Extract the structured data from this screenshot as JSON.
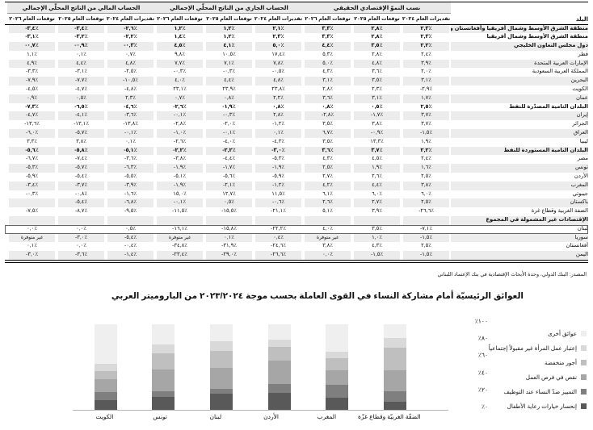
{
  "table": {
    "country_header": "البلد",
    "blocks": [
      {
        "title": "نسب النموّ الإقتصادي الحقيقي"
      },
      {
        "title": "الحساب الجاري من الناتج المحلّي الإجمالي"
      },
      {
        "title": "الحساب المالي من الناتج المحلّي الإجمالي"
      }
    ],
    "col_headers": [
      "تقديرات العام ٢٠٢٤",
      "توقعات العام ٢٠٢٥",
      "توقعات العام ٢٠٢٦"
    ],
    "na_text": "غير متوفرة",
    "source": "المصدر: البنك الدولي، وحدة الأبحاث الإقتصادية في بنك الإعتماد اللبناني",
    "rows": [
      {
        "name": "منطقة الشرق الأوسط وشمال أفريقيا وأفغانستان وباكستان",
        "bold": true,
        "growth": [
          "٢,٣٪",
          "٢,٨٪",
          "٣,٣٪"
        ],
        "current": [
          "٢,١٪",
          "١,٢٪",
          "١,٢٪"
        ],
        "fiscal": [
          "-٢,٦٪",
          "-٣,٤٪",
          "-٣,٤٪"
        ]
      },
      {
        "name": "منطقة الشرق الأوسط وشمال أفريقيا",
        "bold": true,
        "growth": [
          "٢,٣٪",
          "٢,٨٪",
          "٣,٣٪"
        ],
        "current": [
          "٢,٣٪",
          "١,٢٪",
          "١,٤٪"
        ],
        "fiscal": [
          "-٢,٢٪",
          "-٣,٢٪",
          "-٣,١٪"
        ]
      },
      {
        "name": "دول مجلس التعاون الخليجي",
        "bold": true,
        "growth": [
          "٢,٢٪",
          "٣,٥٪",
          "٤,٤٪"
        ],
        "current": [
          "٥,٠٪",
          "٤,١٪",
          "٤,٥٪"
        ],
        "fiscal": [
          "-٠,٣٪",
          "-٠,٩٪",
          "-٠,٧٪"
        ]
      },
      {
        "name": "قطر",
        "bold": false,
        "growth": [
          "٢,٤٪",
          "٢,٨٪",
          "٥,٣٪"
        ],
        "current": [
          "١٧,٤٪",
          "١٠,٥٪",
          "٩,٨٪"
        ],
        "fiscal": [
          "٠,٧٪",
          "٠,١٪",
          "١,١٪"
        ]
      },
      {
        "name": "الإمارات العربية المتحدة",
        "bold": false,
        "growth": [
          "٣,٩٪",
          "٤,٨٪",
          "٥,٠٪"
        ],
        "current": [
          "٧,٨٪",
          "٧,١٪",
          "٧,٧٪"
        ],
        "fiscal": [
          "٤,٨٪",
          "٤,٤٪",
          "٤,٩٪"
        ]
      },
      {
        "name": "المملكة العربية السعودية",
        "bold": false,
        "growth": [
          "٢,٠٪",
          "٣,٦٪",
          "٤,٣٪"
        ],
        "current": [
          "-٠,٥٪",
          "-٠,٣٪",
          "-٠,٣٪"
        ],
        "fiscal": [
          "-٢,٥٪",
          "-٣,١٪",
          "-٣,٣٪"
        ]
      },
      {
        "name": "البحرين",
        "bold": false,
        "growth": [
          "٣,١٪",
          "٣,٥٪",
          "٣,١٪"
        ],
        "current": [
          "٤,٨٪",
          "٤,٤٪",
          "٤,٠٪"
        ],
        "fiscal": [
          "-١٠,٥٪",
          "-٧,٧٪",
          "-٧,٩٪"
        ]
      },
      {
        "name": "الكويت",
        "bold": false,
        "growth": [
          "-٢,٩٪",
          "٢,٣٪",
          "٢,٨٪"
        ],
        "current": [
          "٢٣,٨٪",
          "٢٣,٩٪",
          "٢٣,١٪"
        ],
        "fiscal": [
          "-٤,٨٪",
          "-٤,٧٪",
          "-٤,٥٪"
        ]
      },
      {
        "name": "عمان",
        "bold": false,
        "growth": [
          "١,٧٪",
          "٣,١٪",
          "٣,٦٪"
        ],
        "current": [
          "٢,٢٪",
          "٠,٨٪",
          "٠,٧٪"
        ],
        "fiscal": [
          "٢,٣٪",
          "٠,٥٪",
          "٠,٩٪"
        ]
      },
      {
        "name": "البلدان النامية المصدّرة للنفط",
        "bold": true,
        "growth": [
          "٢,٥٪",
          "٠,٥٪",
          "٠,٨٪"
        ],
        "current": [
          "٠,٨٪",
          "-١,٩٪",
          "-٢,٦٪"
        ],
        "fiscal": [
          "-٤,٦٪",
          "-٦,٥٪",
          "-٧,٣٪"
        ]
      },
      {
        "name": "إيران",
        "bold": false,
        "growth": [
          "٣,٧٪",
          "-١,٧٪",
          "-٢,٨٪"
        ],
        "current": [
          "٢,٨٪",
          "-٠,٣٪",
          "-٠,١٪"
        ],
        "fiscal": [
          "-٣,٦٪",
          "-٤,١٪",
          "-٤,٧٪"
        ]
      },
      {
        "name": "الجزائر",
        "bold": false,
        "growth": [
          "٣,٧٪",
          "٣,٨٪",
          "٣,٥٪"
        ],
        "current": [
          "-١,٢٪",
          "-٢,٠٪",
          "-٢,٨٪"
        ],
        "fiscal": [
          "-١٣,٨٪",
          "-١٣,١٪",
          "-١٣,٦٪"
        ]
      },
      {
        "name": "العراق",
        "bold": false,
        "growth": [
          "-١,٥٪",
          "-٠,٩٪",
          "٦,٧٪"
        ],
        "current": [
          "٠,١٪",
          "-٠,١٪",
          "-١,٠٪"
        ],
        "fiscal": [
          "-٠,١٪",
          "-٥,٧٪",
          "-٦,٠٪"
        ]
      },
      {
        "name": "ليبيا",
        "bold": false,
        "growth": [
          "١,٩٪",
          "١٣,٣٪",
          "٣,٥٪"
        ],
        "current": [
          "-٤,٣٪",
          "-٤,٠٪",
          "-٢,٦٪"
        ],
        "fiscal": [
          "٠,١٪",
          "٣,٨٪",
          "٣,٣٪"
        ]
      },
      {
        "name": "البلدان النامية المستوردة للنفط",
        "bold": true,
        "growth": [
          "٢,٢٪",
          "٣,٧٪",
          "٣,٦٪"
        ],
        "current": [
          "-٣,٠٪",
          "-٢,٢٪",
          "-٢,٢٪"
        ],
        "fiscal": [
          "-٥,١٪",
          "-٥,٨٪",
          "-٥,٦٪"
        ]
      },
      {
        "name": "مصر",
        "bold": false,
        "growth": [
          "٢,٤٪",
          "٤,٥٪",
          "٤,٣٪"
        ],
        "current": [
          "-٥,٣٪",
          "-٤,٤٪",
          "-٣,٨٪"
        ],
        "fiscal": [
          "-٣,٦٪",
          "-٧,٤٪",
          "-٦,٧٪"
        ]
      },
      {
        "name": "تونس",
        "bold": false,
        "growth": [
          "١,٦٪",
          "١,٩٪",
          "٢,٥٪"
        ],
        "current": [
          "-١,٩٪",
          "-١,٧٪",
          "-١,٩٪"
        ],
        "fiscal": [
          "-٦,٣٪",
          "-٥,٧٪",
          "-٥,٣٪"
        ]
      },
      {
        "name": "الأردن",
        "bold": false,
        "growth": [
          "٢,٥٪",
          "٢,٦٪",
          "٢,٧٪"
        ],
        "current": [
          "-٥,٩٪",
          "-٥,٦٪",
          "-٥,١٪"
        ],
        "fiscal": [
          "-٥,٥٪",
          "-٥,٤٪",
          "-٥,٩٪"
        ]
      },
      {
        "name": "المغرب",
        "bold": false,
        "growth": [
          "٣,٨٪",
          "٤,٤٪",
          "٤,٢٪"
        ],
        "current": [
          "-١,٢٪",
          "-٢,١٪",
          "-١,٩٪"
        ],
        "fiscal": [
          "-٣,٩٪",
          "-٣,٧٪",
          "-٣,٤٪"
        ]
      },
      {
        "name": "جيبوتي",
        "bold": false,
        "growth": [
          "٦,٠٪",
          "٦,٠٪",
          "٦,١٪"
        ],
        "current": [
          "١١,٥٪",
          "١٢,٧٪",
          "١٥,٠٪"
        ],
        "fiscal": [
          "-١,٦٪",
          "-٠,٨٪",
          "-٠,٣٪"
        ]
      },
      {
        "name": "باكستان",
        "bold": false,
        "growth": [
          "٢,٥٪",
          "٢,٧٪",
          "٢,٦٪"
        ],
        "current": [
          "-٠,٦٪",
          "٠,٥٪",
          "-٠,١٪"
        ],
        "fiscal": [
          "-٦,٨٪",
          "-٥,٤٪",
          ""
        ]
      },
      {
        "name": "الضفة الغربية وقطاع غزة",
        "bold": false,
        "growth": [
          "-٢٦,٦٪",
          "٣,٩٪",
          "٥,١٪"
        ],
        "current": [
          "-٢١,١٪",
          "-١٥,٥٪",
          "-١١,٥٪"
        ],
        "fiscal": [
          "-٩,٥٪",
          "-٨,٧٪",
          "-٧,٥٪"
        ]
      },
      {
        "name": "الإقتصادات غير المشمولة في المجموع",
        "bold": true,
        "section": true,
        "growth": [
          "",
          "",
          ""
        ],
        "current": [
          "",
          "",
          ""
        ],
        "fiscal": [
          "",
          "",
          ""
        ]
      },
      {
        "name": "لبنان",
        "bold": false,
        "boxed": true,
        "growth": [
          "-٧,١٪",
          "٣,٥٪",
          "٤,٠٪"
        ],
        "current": [
          "-٢٢,٢٪",
          "-١٥,٨٪",
          "-١٦,١٪"
        ],
        "fiscal": [
          "٠,٥٪",
          "٠,٠٪",
          "٠,٠٪"
        ]
      },
      {
        "name": "سوريا",
        "bold": false,
        "growth": [
          "-١,٥٪",
          "١,٠٪",
          "غير متوفرة"
        ],
        "current": [
          "٠,٤٪",
          "٠,١٪",
          "غير متوفرة"
        ],
        "fiscal": [
          "-٥,٤٪",
          "-٣,٠٪",
          "غير متوفرة"
        ]
      },
      {
        "name": "أفغانستان",
        "bold": false,
        "growth": [
          "٢,٥٪",
          "٤,٣٪",
          "٣,٨٪"
        ],
        "current": [
          "-٢٤,٦٪",
          "-٣١,٩٪",
          "-٣٤,٨٪"
        ],
        "fiscal": [
          "-٠,٤٪",
          "٠,٠٪",
          "٠,١٪"
        ]
      },
      {
        "name": "اليمن",
        "bold": false,
        "growth": [
          "-١,٥٪",
          "-١,٥٪",
          "٠,٠٪"
        ],
        "current": [
          "-٢٦,٦٪",
          "-٢٩,٠٪",
          "-٢٣,٤٪"
        ],
        "fiscal": [
          "-١,٤٪",
          "-٣,٦٪",
          "-٣,٠٪"
        ]
      }
    ]
  },
  "chart_data": {
    "type": "stacked-bar-100",
    "title": "العوائق الرئيسيّة أمام مشاركة النساء في القوى العاملة بحسب موجة ٢٠٢٣/٢٠٢٤ من الباروميتر العربي",
    "categories": [
      "الكويت",
      "تونس",
      "لبنان",
      "الأردن",
      "المغرب",
      "الضفّة الغربيّة وقطاع غزّة"
    ],
    "y_ticks": [
      "٠٪",
      "٢٠٪",
      "٤٠٪",
      "٦٠٪",
      "٨٠٪",
      "١٠٠٪"
    ],
    "ylim": [
      0,
      100
    ],
    "grid": false,
    "legend_position": "right",
    "series": [
      {
        "name": "إنحسار خيارات رعاية الأطفال",
        "color": "#595959",
        "values": [
          11,
          15,
          19,
          20,
          14,
          9
        ]
      },
      {
        "name": "التمييز ضدّ النساء عند التوظيف",
        "color": "#7f7f7f",
        "values": [
          10,
          7,
          6,
          10,
          15,
          13
        ]
      },
      {
        "name": "نقص في فرص العمل",
        "color": "#a6a6a6",
        "values": [
          15,
          25,
          24,
          28,
          17,
          24
        ]
      },
      {
        "name": "أجور منخفضة",
        "color": "#bfbfbf",
        "values": [
          9,
          19,
          20,
          16,
          14,
          27
        ]
      },
      {
        "name": "إعتبار عمل المرأة غير مقبولاً إجتماعياً",
        "color": "#d9d9d9",
        "values": [
          9,
          10,
          11,
          8,
          8,
          11
        ]
      },
      {
        "name": "عوائق أخرى",
        "color": "#efefef",
        "values": [
          46,
          24,
          20,
          18,
          32,
          16
        ]
      }
    ]
  }
}
